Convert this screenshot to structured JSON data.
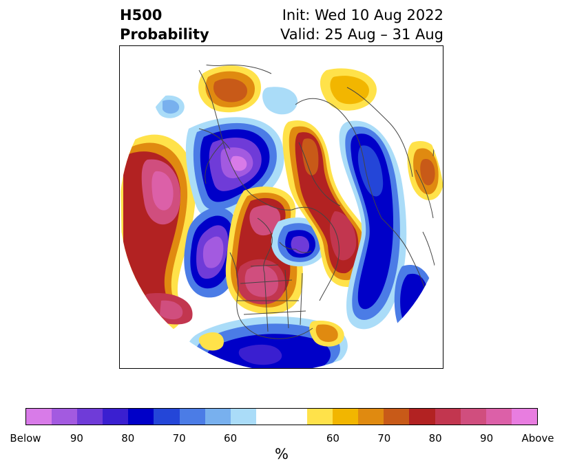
{
  "title": {
    "left_line1": "H500",
    "left_line2": "Probability",
    "right_line1": "Init: Wed 10 Aug 2022",
    "right_line2": "Valid: 25 Aug – 31 Aug"
  },
  "colorbar": {
    "unit": "%",
    "colors": [
      "#d87be8",
      "#a35ae0",
      "#6f3bd8",
      "#3a1fd0",
      "#0000c8",
      "#2446d8",
      "#4b7ce6",
      "#78b0ee",
      "#aadcf8",
      "#ffffff",
      "#ffffff",
      "#ffe24a",
      "#f2b600",
      "#e08a10",
      "#c85a18",
      "#b22222",
      "#c2364f",
      "#d04e7e",
      "#dc60a8",
      "#e87de0"
    ],
    "tick_labels": [
      "Below",
      "90",
      "80",
      "70",
      "60",
      "60",
      "70",
      "80",
      "90",
      "Above"
    ]
  },
  "map": {
    "projection": "north-polar-stereographic",
    "variable": "500 hPa height anomaly probability",
    "features": [
      {
        "name": "west-pacific-above-core",
        "category": "Above",
        "color": "#dc60a8"
      },
      {
        "name": "bering-below-core",
        "category": "Below",
        "color": "#a35ae0"
      },
      {
        "name": "north-pacific-below-core",
        "category": "Below",
        "color": "#a35ae0"
      },
      {
        "name": "north-america-above-core",
        "category": "Above",
        "color": "#c2364f"
      },
      {
        "name": "arctic-below-core",
        "category": "Below",
        "color": "#6f3bd8"
      },
      {
        "name": "greenland-above-core",
        "category": "Above",
        "color": "#c2364f"
      },
      {
        "name": "europe-below-core",
        "category": "Below",
        "color": "#0000c8"
      },
      {
        "name": "siberia-above-core",
        "category": "Above",
        "color": "#c85a18"
      },
      {
        "name": "atlantic-below-core",
        "category": "Below",
        "color": "#0000c8"
      },
      {
        "name": "southern-us-below-core",
        "category": "Below",
        "color": "#0000c8"
      }
    ]
  }
}
